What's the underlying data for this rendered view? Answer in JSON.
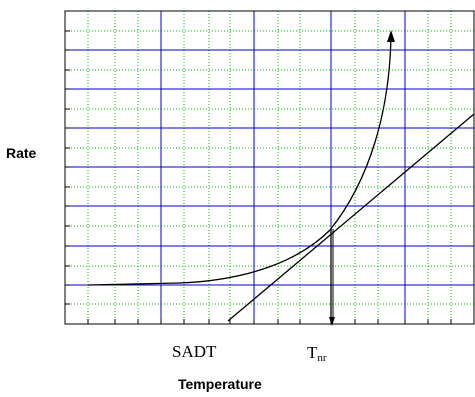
{
  "figure": {
    "y_axis_label": "Rate",
    "x_axis_label": "Temperature",
    "sadt_label": "SADT",
    "tnr_label": {
      "main": "T",
      "subscript": "nr"
    }
  },
  "colors": {
    "major_grid": "#0000cc",
    "minor_grid": "#00bb00",
    "frame": "#000000",
    "curves": "#000000"
  },
  "grid": {
    "major_lines": "blue",
    "minor_lines": "green dotted"
  }
}
